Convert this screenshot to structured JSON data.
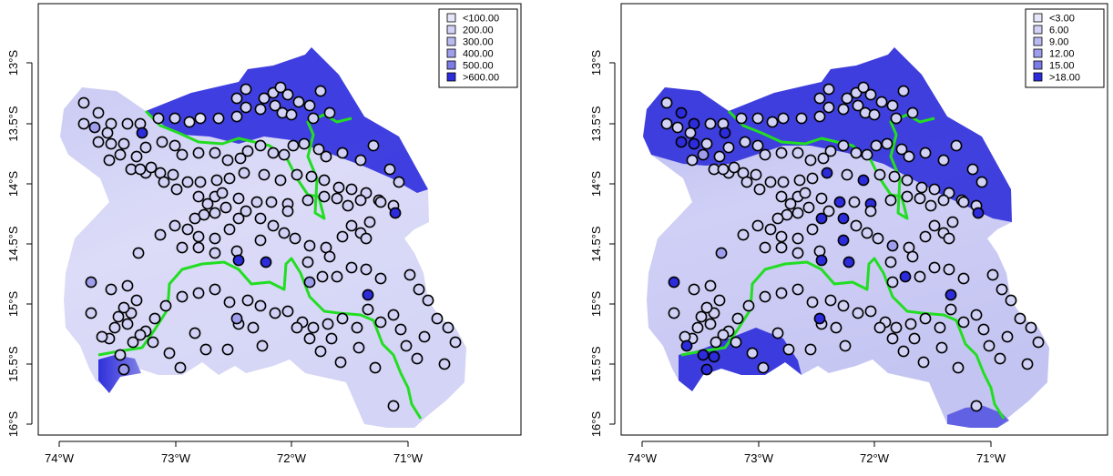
{
  "maps": [
    {
      "id": "left",
      "legend": [
        {
          "label": "<100.00",
          "color": "#e6e6fa"
        },
        {
          "label": "200.00",
          "color": "#d2d2f6"
        },
        {
          "label": "300.00",
          "color": "#babaf2"
        },
        {
          "label": "400.00",
          "color": "#9e9eec"
        },
        {
          "label": "500.00",
          "color": "#7c7ce6"
        },
        {
          "label": ">600.00",
          "color": "#2c2cdc"
        }
      ]
    },
    {
      "id": "right",
      "legend": [
        {
          "label": "<3.00",
          "color": "#e6e6fa"
        },
        {
          "label": "6.00",
          "color": "#d2d2f6"
        },
        {
          "label": "9.00",
          "color": "#babaf2"
        },
        {
          "label": "12.00",
          "color": "#9e9eec"
        },
        {
          "label": "15.00",
          "color": "#7c7ce6"
        },
        {
          "label": ">18.00",
          "color": "#2c2cdc"
        }
      ]
    }
  ],
  "axes": {
    "x_ticks": [
      "74°W",
      "73°W",
      "72°W",
      "71°W"
    ],
    "y_ticks": [
      "13°S",
      "13.5°S",
      "14°S",
      "14.5°S",
      "15°S",
      "15.5°S",
      "16°S"
    ]
  }
}
